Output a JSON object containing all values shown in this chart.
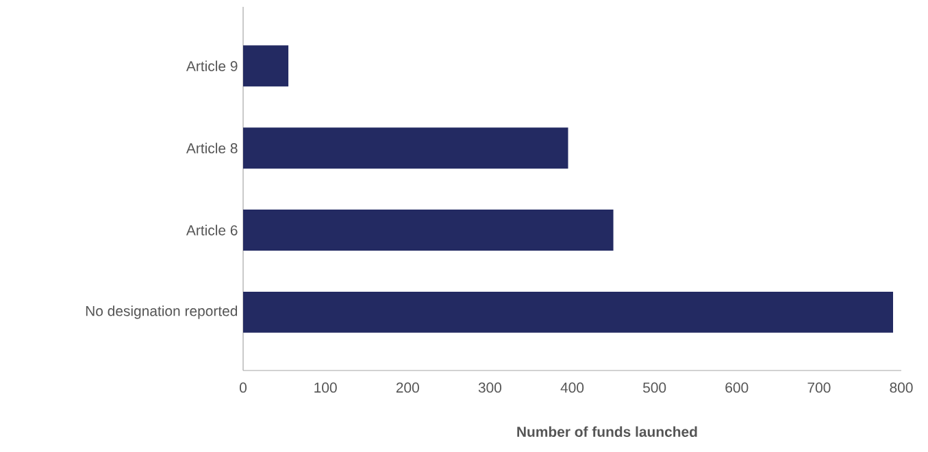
{
  "chart_data": {
    "type": "bar",
    "orientation": "horizontal",
    "xlabel": "Number of funds launched",
    "categories": [
      "Article 9",
      "Article 8",
      "Article 6",
      "No designation reported"
    ],
    "values": [
      55,
      395,
      450,
      790
    ],
    "color": "#232a62",
    "xlim": [
      0,
      800
    ],
    "xticks": [
      0,
      100,
      200,
      300,
      400,
      500,
      600,
      700,
      800
    ]
  }
}
